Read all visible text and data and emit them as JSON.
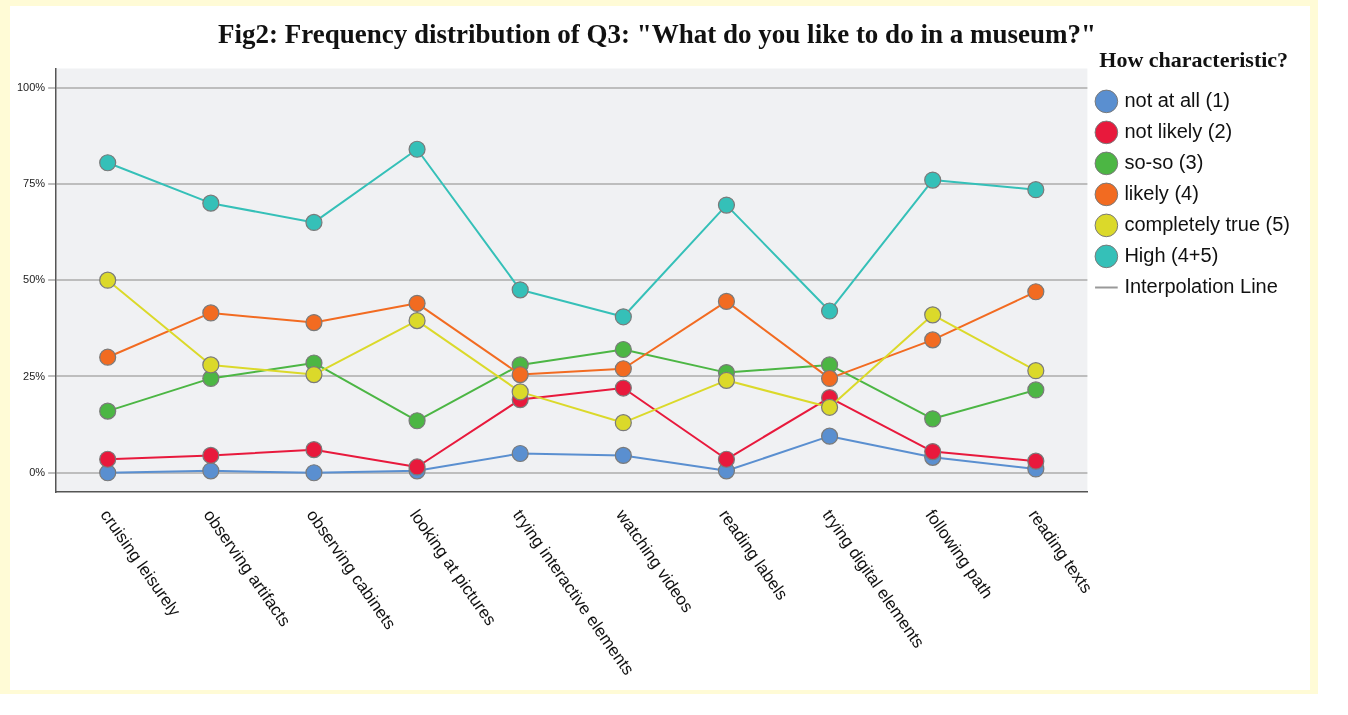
{
  "chart_data": {
    "type": "line",
    "title": "Fig2: Frequency distribution of Q3: \"What do you like to do in a museum?\"",
    "legend_title": "How characteristic?",
    "legend": "right",
    "grid": "y",
    "marker": "circle",
    "line_style": "solid",
    "categories": [
      "cruising leisurely",
      "observing artifacts",
      "observing cabinets",
      "looking at pictures",
      "trying interactive elements",
      "watching videos",
      "reading labels",
      "trying digital elements",
      "following path",
      "reading texts"
    ],
    "ylim": [
      -5,
      105
    ],
    "yticks": [
      {
        "value": 0,
        "label": "0%"
      },
      {
        "value": 25,
        "label": "25%"
      },
      {
        "value": 50,
        "label": "50%"
      },
      {
        "value": 75,
        "label": "75%"
      },
      {
        "value": 100,
        "label": "100%"
      }
    ],
    "series": [
      {
        "name": "not at all (1)",
        "color": "#5a8fd0",
        "values": [
          0,
          0.5,
          0,
          0.5,
          5,
          4.5,
          0.5,
          9.5,
          4,
          1
        ]
      },
      {
        "name": "not likely (2)",
        "color": "#e8193c",
        "values": [
          3.5,
          4.5,
          6,
          1.5,
          19,
          22,
          3.5,
          19.5,
          5.5,
          3
        ]
      },
      {
        "name": "so-so (3)",
        "color": "#4cb644",
        "values": [
          16,
          24.5,
          28.5,
          13.5,
          28,
          32,
          26,
          28,
          14,
          21.5
        ]
      },
      {
        "name": "likely (4)",
        "color": "#f26b21",
        "values": [
          30,
          41.5,
          39,
          44,
          25.5,
          27,
          44.5,
          24.5,
          34.5,
          47
        ]
      },
      {
        "name": "completely true (5)",
        "color": "#dbd92a",
        "values": [
          50,
          28,
          25.5,
          39.5,
          21,
          13,
          24,
          17,
          41,
          26.5
        ]
      },
      {
        "name": "High (4+5)",
        "color": "#35c0b8",
        "values": [
          80.5,
          70,
          65,
          84,
          47.5,
          40.5,
          69.5,
          42,
          76,
          73.5
        ]
      }
    ],
    "annotations": [
      "Interpolation Line"
    ]
  }
}
